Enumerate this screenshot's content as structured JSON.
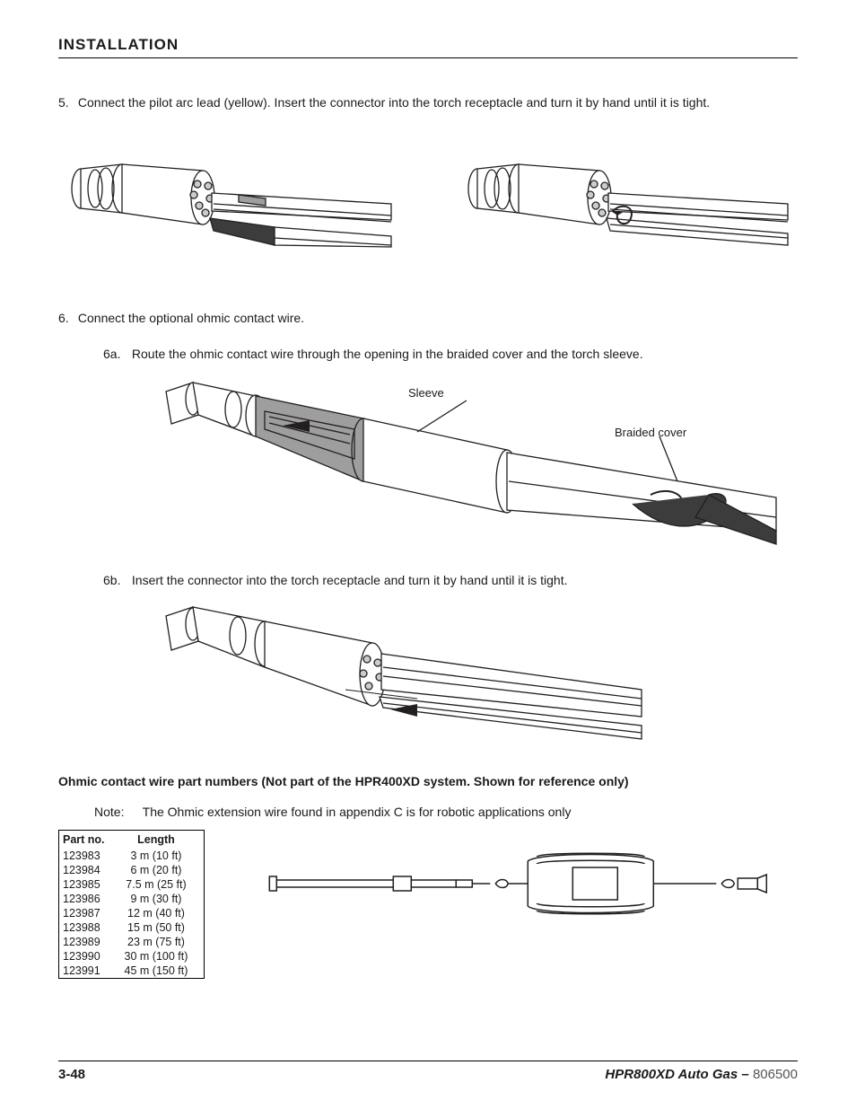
{
  "section_title": "INSTALLATION",
  "step5": {
    "num": "5.",
    "text": "Connect the pilot arc lead (yellow). Insert the connector into the torch receptacle and turn it by hand until it is tight."
  },
  "step6": {
    "num": "6.",
    "text": "Connect the optional ohmic contact wire."
  },
  "step6a": {
    "num": "6a.",
    "text": "Route the ohmic contact wire through the opening in the braided cover and the torch sleeve."
  },
  "step6b": {
    "num": "6b.",
    "text": "Insert the connector into the torch receptacle and turn it by hand until it is tight."
  },
  "callout_sleeve": "Sleeve",
  "callout_braided": "Braided cover",
  "subheading": "Ohmic contact wire part numbers (Not part of the HPR400XD system. Shown for reference only)",
  "note_label": "Note:",
  "note_text": "The Ohmic extension wire found in appendix C is for robotic applications only",
  "table": {
    "columns": [
      "Part no.",
      "Length"
    ],
    "rows": [
      [
        "123983",
        "3 m (10 ft)"
      ],
      [
        "123984",
        "6 m (20 ft)"
      ],
      [
        "123985",
        "7.5 m (25 ft)"
      ],
      [
        "123986",
        "9 m (30 ft)"
      ],
      [
        "123987",
        "12 m (40 ft)"
      ],
      [
        "123988",
        "15 m (50 ft)"
      ],
      [
        "123989",
        "23 m (75 ft)"
      ],
      [
        "123990",
        "30 m (100 ft)"
      ],
      [
        "123991",
        "45 m (150 ft)"
      ]
    ]
  },
  "footer": {
    "page": "3-48",
    "model": "HPR800XD Auto Gas",
    "dash": " – ",
    "docnum": "806500"
  },
  "colors": {
    "text": "#1a1a1a",
    "rule": "#000000",
    "diagram_stroke": "#231f20",
    "diagram_fill_light": "#ffffff",
    "diagram_fill_mid": "#9e9e9e",
    "diagram_fill_dark": "#3c3c3c",
    "footer_docnum": "#555555"
  }
}
